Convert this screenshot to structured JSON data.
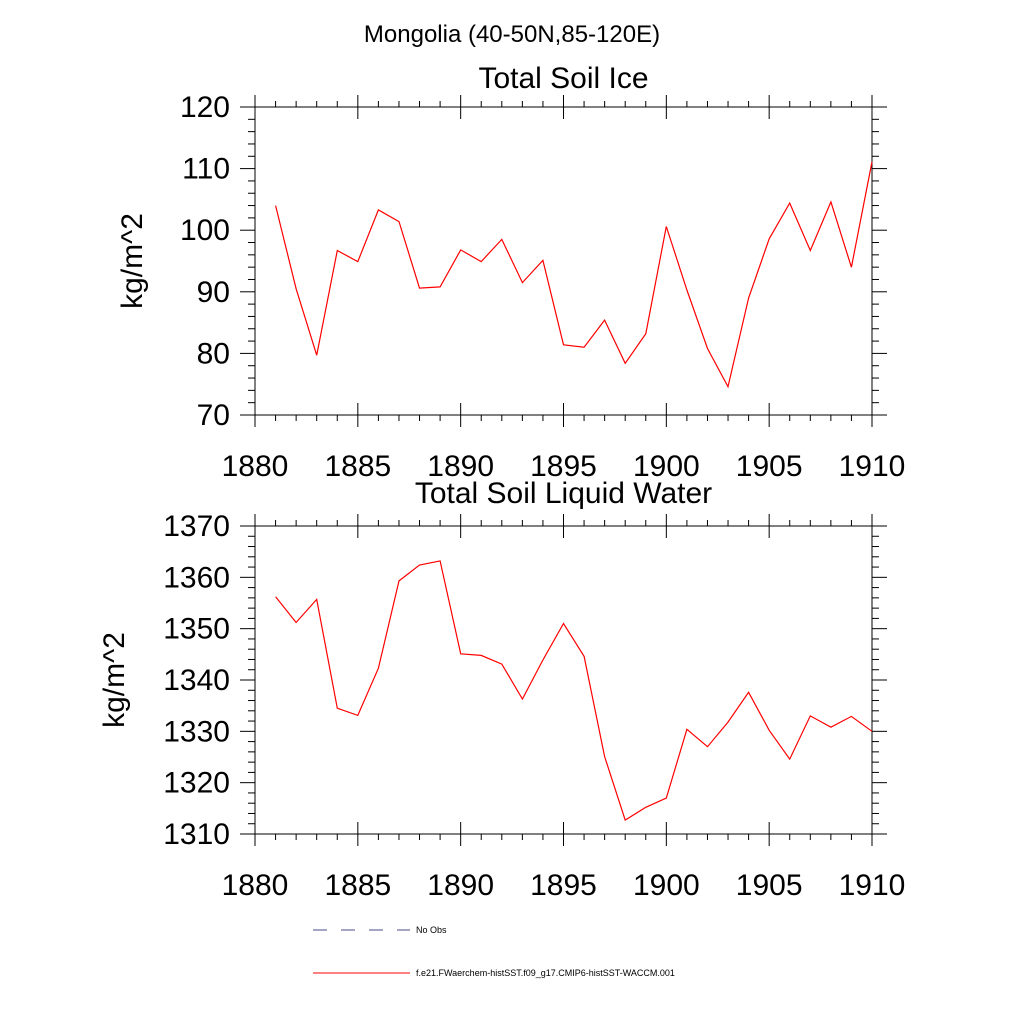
{
  "figure": {
    "title": "Mongolia (40-50N,85-120E)"
  },
  "chart_data": [
    {
      "type": "line",
      "title": "Total Soil Ice",
      "xlabel": "",
      "ylabel": "kg/m^2",
      "xlim": [
        1880,
        1910
      ],
      "ylim": [
        70,
        120
      ],
      "xticks": [
        1880,
        1885,
        1890,
        1895,
        1900,
        1905,
        1910
      ],
      "yticks": [
        70,
        80,
        90,
        100,
        110,
        120
      ],
      "grid": false,
      "series": [
        {
          "name": "f.e21.FWaerchem-histSST.f09_g17.CMIP6-histSST-WACCM.001",
          "color": "#ff0000",
          "x": [
            1881,
            1882,
            1883,
            1884,
            1885,
            1886,
            1887,
            1888,
            1889,
            1890,
            1891,
            1892,
            1893,
            1894,
            1895,
            1896,
            1897,
            1898,
            1899,
            1900,
            1901,
            1902,
            1903,
            1904,
            1905,
            1906,
            1907,
            1908,
            1909,
            1910
          ],
          "y": [
            104.0,
            90.5,
            79.7,
            96.7,
            94.9,
            103.3,
            101.4,
            90.6,
            90.8,
            96.8,
            94.9,
            98.5,
            91.5,
            95.1,
            81.4,
            81.0,
            85.4,
            78.4,
            83.2,
            100.6,
            90.3,
            80.8,
            74.6,
            89.0,
            98.6,
            104.4,
            96.7,
            104.6,
            94.0,
            111.1
          ]
        }
      ]
    },
    {
      "type": "line",
      "title": "Total Soil Liquid Water",
      "xlabel": "",
      "ylabel": "kg/m^2",
      "xlim": [
        1880,
        1910
      ],
      "ylim": [
        1310,
        1370
      ],
      "xticks": [
        1880,
        1885,
        1890,
        1895,
        1900,
        1905,
        1910
      ],
      "yticks": [
        1310,
        1320,
        1330,
        1340,
        1350,
        1360,
        1370
      ],
      "grid": false,
      "series": [
        {
          "name": "f.e21.FWaerchem-histSST.f09_g17.CMIP6-histSST-WACCM.001",
          "color": "#ff0000",
          "x": [
            1881,
            1882,
            1883,
            1884,
            1885,
            1886,
            1887,
            1888,
            1889,
            1890,
            1891,
            1892,
            1893,
            1894,
            1895,
            1896,
            1897,
            1898,
            1899,
            1900,
            1901,
            1902,
            1903,
            1904,
            1905,
            1906,
            1907,
            1908,
            1909,
            1910
          ],
          "y": [
            1356.2,
            1351.2,
            1355.7,
            1334.5,
            1333.1,
            1342.3,
            1359.3,
            1362.4,
            1363.2,
            1345.1,
            1344.8,
            1343.1,
            1336.3,
            1343.9,
            1351.0,
            1344.6,
            1325.1,
            1312.7,
            1315.2,
            1317.0,
            1330.4,
            1327.0,
            1331.8,
            1337.6,
            1330.2,
            1324.6,
            1333.0,
            1330.8,
            1332.9,
            1330.0
          ]
        }
      ]
    }
  ],
  "legend": {
    "placement": "bottom",
    "items": [
      {
        "label": "No Obs",
        "color": "#4a4a8a",
        "style": "dashed"
      },
      {
        "label": "f.e21.FWaerchem-histSST.f09_g17.CMIP6-histSST-WACCM.001",
        "color": "#ff0000",
        "style": "solid"
      }
    ]
  }
}
